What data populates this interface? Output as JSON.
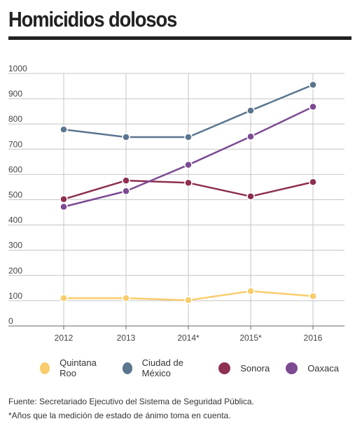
{
  "title": "Homicidios dolosos",
  "chart_data": {
    "type": "line",
    "categories": [
      "2012",
      "2013",
      "2014*",
      "2015*",
      "2016"
    ],
    "ylim": [
      0,
      1000
    ],
    "yticks": [
      0,
      100,
      200,
      300,
      400,
      500,
      600,
      700,
      800,
      900,
      1000
    ],
    "grid": true,
    "legend_position": "bottom",
    "series": [
      {
        "name": "Quintana Roo",
        "color": "#f9cc6d",
        "values": [
          110,
          110,
          102,
          138,
          118
        ]
      },
      {
        "name": "Ciudad de México",
        "color": "#5b758f",
        "values": [
          778,
          748,
          748,
          853,
          955
        ]
      },
      {
        "name": "Sonora",
        "color": "#8d2f52",
        "values": [
          502,
          576,
          567,
          513,
          570
        ]
      },
      {
        "name": "Oaxaca",
        "color": "#7c4a92",
        "values": [
          472,
          534,
          638,
          750,
          868
        ]
      }
    ]
  },
  "footer": {
    "source": "Fuente: Secretariado Ejecutivo del Sistema de Seguridad Pública.",
    "note": "*Años que la medición de estado de ánimo toma en cuenta."
  }
}
